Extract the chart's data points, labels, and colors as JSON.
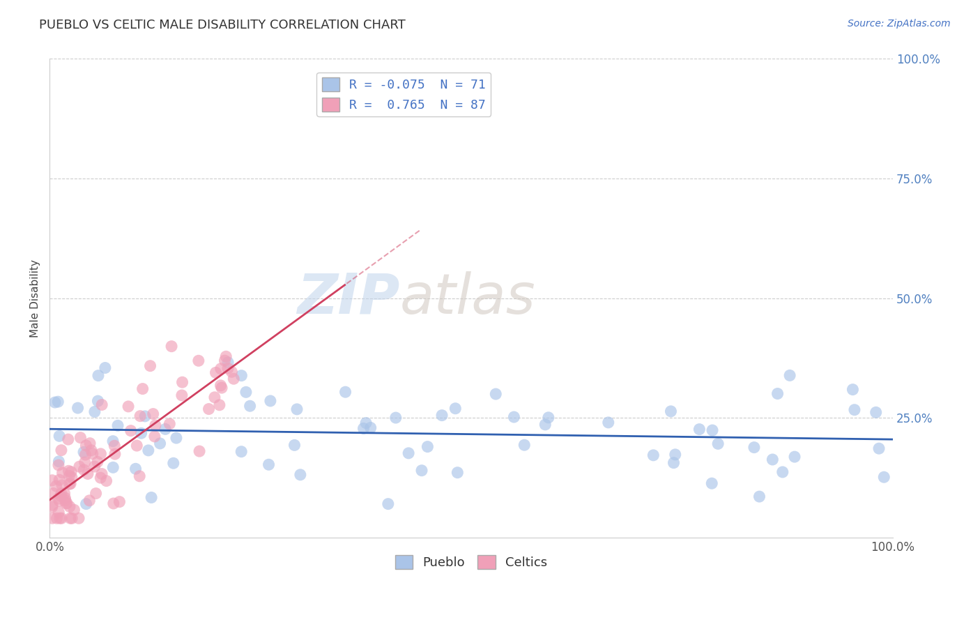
{
  "title": "PUEBLO VS CELTIC MALE DISABILITY CORRELATION CHART",
  "source": "Source: ZipAtlas.com",
  "ylabel": "Male Disability",
  "watermark_zip": "ZIP",
  "watermark_atlas": "atlas",
  "pueblo_color": "#aac4e8",
  "celtics_color": "#f0a0b8",
  "pueblo_line_color": "#3060b0",
  "celtics_line_color": "#d04060",
  "pueblo_R": -0.075,
  "pueblo_N": 71,
  "celtics_R": 0.765,
  "celtics_N": 87,
  "xlim": [
    0,
    1.0
  ],
  "ylim": [
    0,
    1.0
  ],
  "grid_color": "#cccccc",
  "background_color": "#ffffff",
  "right_ytick_color": "#5080c0",
  "title_color": "#333333",
  "source_color": "#4472c4"
}
